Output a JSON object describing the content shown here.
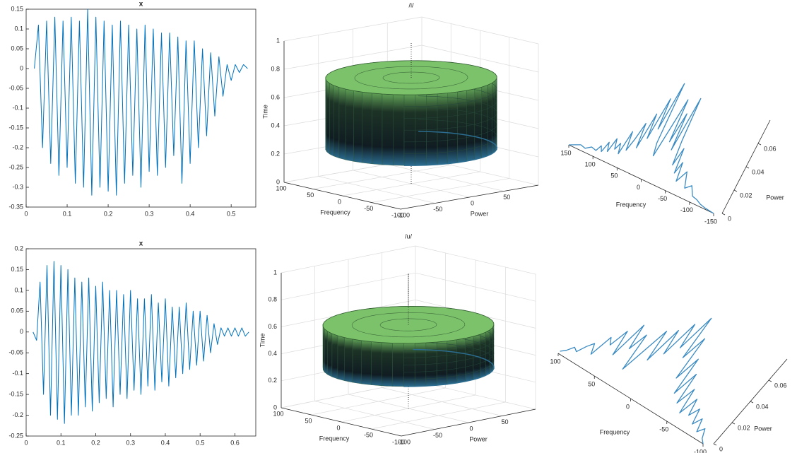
{
  "chart_data": [
    {
      "type": "line",
      "title": "x",
      "color": "#0072bd",
      "x": [
        0.02,
        0.03,
        0.04,
        0.05,
        0.06,
        0.07,
        0.08,
        0.09,
        0.1,
        0.11,
        0.12,
        0.13,
        0.14,
        0.15,
        0.16,
        0.17,
        0.18,
        0.19,
        0.2,
        0.21,
        0.22,
        0.23,
        0.24,
        0.25,
        0.26,
        0.27,
        0.28,
        0.29,
        0.3,
        0.31,
        0.32,
        0.33,
        0.34,
        0.35,
        0.36,
        0.37,
        0.38,
        0.39,
        0.4,
        0.41,
        0.42,
        0.43,
        0.44,
        0.45,
        0.46,
        0.47,
        0.48,
        0.49,
        0.5,
        0.51,
        0.52,
        0.53,
        0.54
      ],
      "values": [
        0,
        0.11,
        -0.2,
        0.12,
        -0.24,
        0.13,
        -0.27,
        0.12,
        -0.25,
        0.13,
        -0.29,
        0.12,
        -0.3,
        0.15,
        -0.32,
        0.13,
        -0.3,
        0.12,
        -0.31,
        0.11,
        -0.32,
        0.12,
        -0.29,
        0.11,
        -0.27,
        0.1,
        -0.3,
        0.11,
        -0.26,
        0.1,
        -0.27,
        0.09,
        -0.25,
        0.09,
        -0.22,
        0.08,
        -0.29,
        0.07,
        -0.24,
        0.07,
        -0.2,
        0.05,
        -0.17,
        0.04,
        -0.12,
        0.03,
        -0.07,
        0.01,
        -0.03,
        0.01,
        -0.01,
        0.01,
        0
      ],
      "xlim": [
        0,
        0.56
      ],
      "xticks": [
        0,
        0.1,
        0.2,
        0.3,
        0.4,
        0.5
      ],
      "ylim": [
        -0.35,
        0.15
      ],
      "yticks": [
        -0.35,
        -0.3,
        -0.25,
        -0.2,
        -0.15,
        -0.1,
        -0.05,
        0,
        0.05,
        0.1,
        0.15
      ]
    },
    {
      "type": "cylinder3d",
      "title": "/i/",
      "xlabel": "Frequency",
      "ylabel": "Power",
      "zlabel": "Time",
      "xlim": [
        -100,
        100
      ],
      "xticks": [
        -100,
        -50,
        0,
        50,
        100
      ],
      "ylim": [
        -100,
        100
      ],
      "yticks": [
        -100,
        -50,
        0,
        50
      ],
      "zlim": [
        0,
        1
      ],
      "zticks": [
        0,
        0.2,
        0.4,
        0.6,
        0.8,
        1
      ],
      "time_range": [
        0.25,
        0.75
      ],
      "radius": 95,
      "top_color": "#7cc26a",
      "bottom_color": "#2b6c8f"
    },
    {
      "type": "line3d",
      "xlabel": "Frequency",
      "ylabel": "Power",
      "color": "#3b8bc2",
      "x": [
        150,
        140,
        130,
        120,
        110,
        100,
        95,
        90,
        85,
        80,
        75,
        70,
        65,
        60,
        55,
        50,
        45,
        40,
        35,
        30,
        25,
        20,
        15,
        10,
        5,
        0,
        -5,
        -10,
        -15,
        -20,
        -25,
        -30,
        -35,
        -40,
        -45,
        -50,
        -55,
        -60,
        -70,
        -80,
        -90,
        -100,
        -110,
        -120,
        -130,
        -150
      ],
      "values": [
        0,
        0.002,
        0.004,
        0.003,
        0.006,
        0.005,
        0.01,
        0.006,
        0.015,
        0.008,
        0.02,
        0.012,
        0.018,
        0.01,
        0.03,
        0.015,
        0.025,
        0.04,
        0.02,
        0.05,
        0.03,
        0.065,
        0.04,
        0.08,
        0.03,
        0.02,
        0.045,
        0.07,
        0.035,
        0.06,
        0.03,
        0.075,
        0.04,
        0.02,
        0.035,
        0.015,
        0.025,
        0.01,
        0.02,
        0.008,
        0.012,
        0.005,
        0.004,
        0.002,
        0.001,
        0
      ],
      "xlim": [
        -150,
        150
      ],
      "xticks": [
        -150,
        -100,
        -50,
        0,
        50,
        100,
        150
      ],
      "ylim": [
        0,
        0.08
      ],
      "yticks": [
        0,
        0.02,
        0.04,
        0.06
      ]
    },
    {
      "type": "line",
      "title": "x",
      "color": "#0072bd",
      "x": [
        0.02,
        0.03,
        0.04,
        0.05,
        0.06,
        0.07,
        0.08,
        0.09,
        0.1,
        0.11,
        0.12,
        0.13,
        0.14,
        0.15,
        0.16,
        0.17,
        0.18,
        0.19,
        0.2,
        0.21,
        0.22,
        0.23,
        0.24,
        0.25,
        0.26,
        0.27,
        0.28,
        0.29,
        0.3,
        0.31,
        0.32,
        0.33,
        0.34,
        0.35,
        0.36,
        0.37,
        0.38,
        0.39,
        0.4,
        0.41,
        0.42,
        0.43,
        0.44,
        0.45,
        0.46,
        0.47,
        0.48,
        0.49,
        0.5,
        0.51,
        0.52,
        0.53,
        0.54,
        0.55,
        0.56,
        0.57,
        0.58,
        0.59,
        0.6,
        0.61,
        0.62,
        0.63,
        0.64
      ],
      "values": [
        0,
        -0.02,
        0.12,
        -0.15,
        0.16,
        -0.2,
        0.17,
        -0.21,
        0.16,
        -0.22,
        0.15,
        -0.2,
        0.13,
        -0.2,
        0.12,
        -0.18,
        0.13,
        -0.19,
        0.11,
        -0.17,
        0.12,
        -0.16,
        0.1,
        -0.18,
        0.1,
        -0.15,
        0.09,
        -0.16,
        0.1,
        -0.14,
        0.08,
        -0.15,
        0.08,
        -0.13,
        0.09,
        -0.14,
        0.07,
        -0.12,
        0.08,
        -0.13,
        0.06,
        -0.11,
        0.06,
        -0.1,
        0.07,
        -0.09,
        0.05,
        -0.08,
        0.05,
        -0.07,
        0.04,
        -0.05,
        0.02,
        -0.03,
        0.01,
        -0.01,
        0.01,
        -0.01,
        0.01,
        -0.01,
        0.01,
        -0.01,
        0
      ],
      "xlim": [
        0,
        0.66
      ],
      "xticks": [
        0,
        0.1,
        0.2,
        0.3,
        0.4,
        0.5,
        0.6
      ],
      "ylim": [
        -0.25,
        0.2
      ],
      "yticks": [
        -0.25,
        -0.2,
        -0.15,
        -0.1,
        -0.05,
        0,
        0.05,
        0.1,
        0.15,
        0.2
      ]
    },
    {
      "type": "cylinder3d",
      "title": "/u/",
      "xlabel": "Frequency",
      "ylabel": "Power",
      "zlabel": "Time",
      "xlim": [
        -100,
        100
      ],
      "xticks": [
        -100,
        -50,
        0,
        50,
        100
      ],
      "ylim": [
        -100,
        100
      ],
      "yticks": [
        -100,
        -50,
        0,
        50
      ],
      "zlim": [
        0,
        1
      ],
      "zticks": [
        0,
        0.2,
        0.4,
        0.6,
        0.8,
        1
      ],
      "time_range": [
        0.3,
        0.62
      ],
      "radius": 95,
      "top_color": "#7cc26a",
      "bottom_color": "#2b6c8f"
    },
    {
      "type": "line3d",
      "xlabel": "Frequency",
      "ylabel": "Power",
      "color": "#3b8bc2",
      "x": [
        100,
        95,
        90,
        85,
        80,
        75,
        70,
        65,
        60,
        55,
        50,
        45,
        40,
        35,
        30,
        25,
        20,
        15,
        10,
        5,
        0,
        -5,
        -10,
        -15,
        -20,
        -25,
        -30,
        -35,
        -40,
        -45,
        -50,
        -55,
        -60,
        -65,
        -70,
        -75,
        -80,
        -85,
        -90,
        -95,
        -100
      ],
      "values": [
        0.002,
        0.005,
        0.01,
        0.008,
        0.015,
        0.02,
        0.012,
        0.03,
        0.025,
        0.04,
        0.02,
        0.05,
        0.03,
        0.045,
        0.015,
        0.035,
        0.055,
        0.03,
        0.06,
        0.04,
        0.07,
        0.05,
        0.08,
        0.045,
        0.065,
        0.03,
        0.05,
        0.02,
        0.04,
        0.015,
        0.03,
        0.01,
        0.025,
        0.012,
        0.02,
        0.008,
        0.015,
        0.005,
        0.01,
        0.003,
        0
      ],
      "xlim": [
        -100,
        100
      ],
      "xticks": [
        -100,
        -50,
        0,
        50,
        100
      ],
      "ylim": [
        0,
        0.08
      ],
      "yticks": [
        0,
        0.02,
        0.04,
        0.06
      ]
    }
  ]
}
